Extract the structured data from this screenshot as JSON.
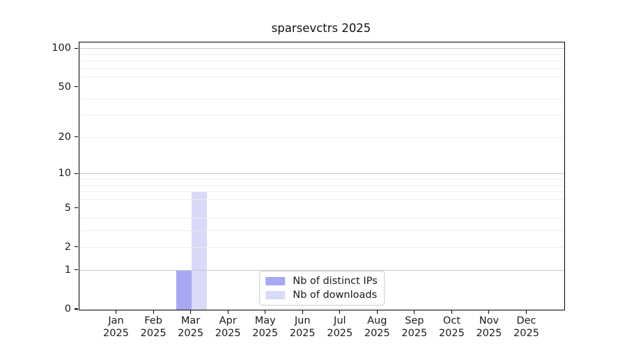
{
  "chart_data": {
    "type": "bar",
    "title": "sparsevctrs 2025",
    "x_axis": {
      "categories": [
        "Jan",
        "Feb",
        "Mar",
        "Apr",
        "May",
        "Jun",
        "Jul",
        "Aug",
        "Sep",
        "Oct",
        "Nov",
        "Dec"
      ],
      "year_label": "2025"
    },
    "y_axis": {
      "scale": "log1p",
      "tick_labels": [
        0,
        1,
        2,
        5,
        10,
        20,
        50,
        100
      ],
      "major_gridlines": [
        1,
        10,
        100
      ],
      "minor_gridlines": [
        2,
        3,
        4,
        6,
        7,
        8,
        9,
        20,
        30,
        40,
        60,
        70,
        80,
        90
      ],
      "ylim": [
        0,
        112
      ],
      "grid": true
    },
    "series": [
      {
        "name": "Nb of distinct IPs",
        "color": "#a8a8f2",
        "values": [
          0,
          0,
          1,
          0,
          0,
          0,
          0,
          0,
          0,
          0,
          0,
          0
        ]
      },
      {
        "name": "Nb of downloads",
        "color": "#d9d9f8",
        "values": [
          0,
          0,
          7,
          0,
          0,
          0,
          0,
          0,
          0,
          0,
          0,
          0
        ]
      }
    ],
    "legend": {
      "position": "lower center",
      "entries": [
        "Nb of distinct IPs",
        "Nb of downloads"
      ]
    }
  },
  "colors": {
    "spine": "#000000",
    "major_grid": "#c7c7c7",
    "minor_grid": "#ededed",
    "text": "#1a1a1a",
    "legend_border": "#cccccc"
  }
}
